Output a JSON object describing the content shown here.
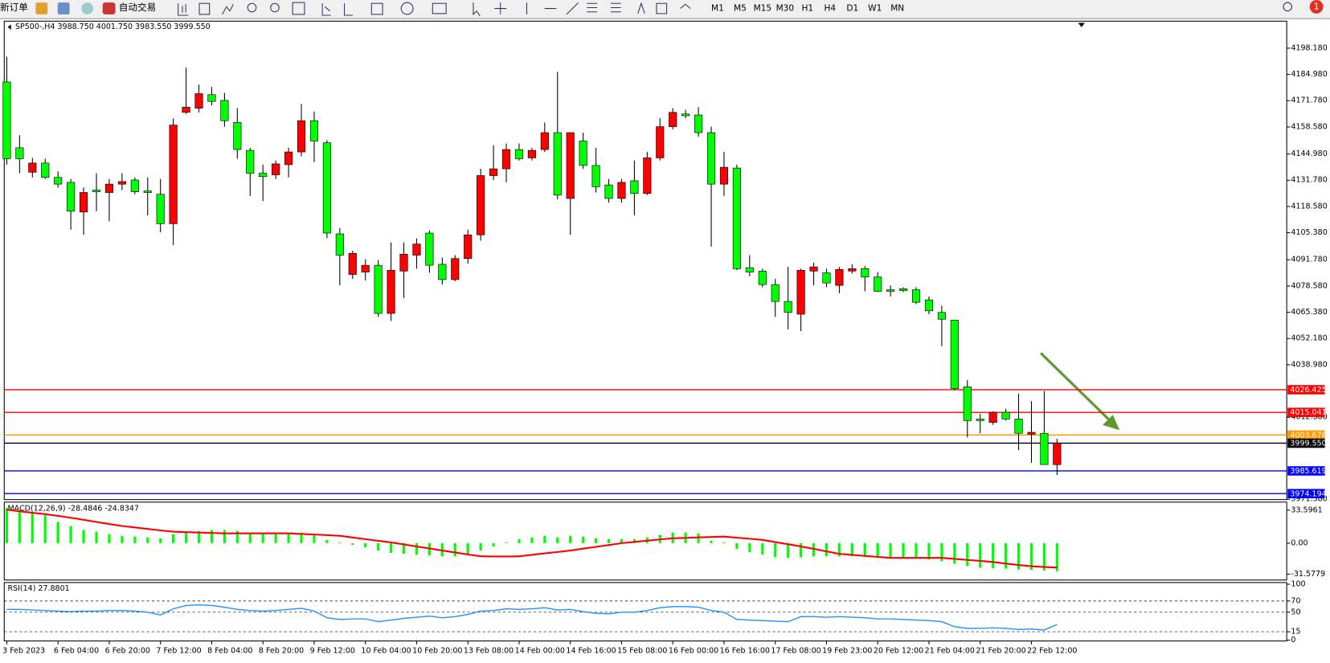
{
  "toolbar": {
    "new_order": "新订单",
    "auto_trading": "自动交易",
    "timeframes": [
      "M1",
      "M5",
      "M15",
      "M30",
      "H1",
      "H4",
      "D1",
      "W1",
      "MN"
    ],
    "notifications": "1"
  },
  "chart_data": [
    {
      "type": "candlestick",
      "title": "SP500-,H4 3988.750 4001.750 3983.550 3999.550",
      "categories": [
        "3 Feb 2023",
        null,
        null,
        null,
        "6 Feb 04:00",
        null,
        null,
        null,
        "6 Feb 20:00",
        null,
        null,
        null,
        "7 Feb 12:00",
        null,
        null,
        null,
        "8 Feb 04:00",
        null,
        null,
        null,
        "8 Feb 20:00",
        null,
        null,
        null,
        "9 Feb 12:00",
        null,
        null,
        null,
        "10 Feb 04:00",
        null,
        null,
        null,
        "10 Feb 20:00",
        null,
        null,
        null,
        "13 Feb 08:00",
        null,
        null,
        null,
        "14 Feb 00:00",
        null,
        null,
        null,
        "14 Feb 16:00",
        null,
        null,
        null,
        "15 Feb 08:00",
        null,
        null,
        null,
        "16 Feb 00:00",
        null,
        null,
        null,
        "16 Feb 16:00",
        null,
        null,
        null,
        "17 Feb 08:00",
        null,
        null,
        null,
        "19 Feb 23:00",
        null,
        null,
        null,
        "20 Feb 12:00",
        null,
        null,
        null,
        "21 Feb 04:00",
        null,
        null,
        null,
        "21 Feb 20:00",
        null,
        null,
        null,
        "22 Feb 12:00",
        null,
        null
      ],
      "open": [
        4181.2,
        4148.1,
        4135.8,
        4140.4,
        4133.2,
        4130.7,
        4115.8,
        4126.8,
        4125.6,
        4129.8,
        4131.9,
        4126.4,
        4124.7,
        4109.9,
        4165.9,
        4168.0,
        4174.8,
        4171.9,
        4160.8,
        4146.8,
        4135.3,
        4134.5,
        4139.6,
        4146.0,
        4161.7,
        4150.6,
        4104.8,
        4084.4,
        4085.6,
        4089.0,
        4064.8,
        4086.1,
        4094.1,
        4105.2,
        4089.5,
        4081.8,
        4092.4,
        4104.3,
        4134.1,
        4137.5,
        4147.2,
        4143.0,
        4147.2,
        4155.7,
        4122.6,
        4151.5,
        4139.2,
        4129.4,
        4122.6,
        4131.5,
        4125.1,
        4143.0,
        4158.7,
        4165.1,
        4164.6,
        4155.7,
        4129.8,
        4137.9,
        4087.8,
        4086.1,
        4079.3,
        4070.8,
        4064.4,
        4086.1,
        4085.2,
        4078.9,
        4086.1,
        4087.3,
        4083.1,
        4076.7,
        4077.2,
        4076.7,
        4071.6,
        4065.3,
        4061.4,
        4027.9,
        4011.7,
        4010.0,
        4015.1,
        4011.7,
        4004.1,
        4004.5,
        3988.75
      ],
      "high": [
        4193.9,
        4154.4,
        4143.0,
        4142.6,
        4136.2,
        4132.4,
        4128.1,
        4135.3,
        4132.4,
        4135.3,
        4133.2,
        4133.2,
        4132.4,
        4162.9,
        4188.4,
        4179.9,
        4178.7,
        4175.7,
        4168.0,
        4148.1,
        4139.6,
        4141.7,
        4148.1,
        4170.2,
        4166.3,
        4151.9,
        4107.7,
        4096.3,
        4092.0,
        4091.6,
        4100.5,
        4100.5,
        4102.6,
        4106.5,
        4092.9,
        4094.1,
        4106.9,
        4137.5,
        4149.4,
        4150.2,
        4150.2,
        4148.1,
        4160.8,
        4186.3,
        4155.7,
        4155.7,
        4148.1,
        4132.4,
        4132.4,
        4141.7,
        4146.0,
        4162.9,
        4168.0,
        4167.2,
        4168.5,
        4158.7,
        4146.0,
        4139.6,
        4094.1,
        4087.3,
        4082.2,
        4088.2,
        4087.3,
        4090.3,
        4087.3,
        4088.2,
        4089.5,
        4088.6,
        4085.6,
        4078.9,
        4078.0,
        4078.0,
        4073.3,
        4068.7,
        4061.4,
        4031.3,
        4014.3,
        4015.6,
        4016.8,
        4024.5,
        4020.7,
        4025.8,
        4001.75
      ],
      "low": [
        4139.6,
        4135.3,
        4133.2,
        4132.4,
        4128.1,
        4106.9,
        4104.3,
        4116.2,
        4111.1,
        4126.8,
        4124.7,
        4114.1,
        4105.6,
        4099.2,
        4165.1,
        4165.9,
        4169.3,
        4158.7,
        4142.6,
        4123.9,
        4121.3,
        4132.4,
        4133.2,
        4143.8,
        4140.9,
        4102.6,
        4078.9,
        4082.2,
        4081.4,
        4063.1,
        4061.0,
        4072.5,
        4087.3,
        4085.2,
        4079.3,
        4081.0,
        4089.9,
        4101.4,
        4131.9,
        4130.7,
        4141.7,
        4141.7,
        4146.0,
        4122.2,
        4104.3,
        4137.5,
        4125.6,
        4120.5,
        4120.5,
        4114.1,
        4124.3,
        4141.7,
        4157.4,
        4162.9,
        4153.6,
        4098.4,
        4123.9,
        4086.5,
        4083.5,
        4078.0,
        4063.1,
        4056.8,
        4055.9,
        4078.9,
        4078.0,
        4075.0,
        4084.8,
        4075.9,
        4075.5,
        4073.3,
        4075.5,
        4069.5,
        4064.4,
        4048.3,
        4026.2,
        4002.4,
        4004.5,
        4008.8,
        4010.9,
        3996.0,
        3989.7,
        3988.8,
        3983.55
      ],
      "close": [
        4142.6,
        4142.6,
        4140.4,
        4133.2,
        4129.8,
        4116.2,
        4125.6,
        4126.0,
        4129.8,
        4131.1,
        4126.0,
        4125.6,
        4109.9,
        4159.5,
        4168.5,
        4175.3,
        4171.4,
        4161.7,
        4147.2,
        4135.3,
        4133.6,
        4140.0,
        4146.0,
        4161.7,
        4151.5,
        4105.2,
        4094.1,
        4095.0,
        4089.0,
        4064.8,
        4086.5,
        4094.6,
        4099.7,
        4089.0,
        4081.8,
        4092.4,
        4104.3,
        4134.1,
        4137.5,
        4147.2,
        4142.6,
        4146.8,
        4155.7,
        4124.3,
        4155.7,
        4139.2,
        4128.5,
        4122.6,
        4130.7,
        4125.1,
        4143.0,
        4158.7,
        4165.9,
        4164.2,
        4155.7,
        4129.8,
        4138.3,
        4087.3,
        4085.6,
        4079.3,
        4070.8,
        4065.3,
        4086.5,
        4088.2,
        4080.1,
        4086.9,
        4087.3,
        4083.1,
        4075.9,
        4075.9,
        4076.3,
        4070.4,
        4066.1,
        4061.9,
        4027.0,
        4010.9,
        4010.9,
        4015.1,
        4011.7,
        4004.5,
        4005.0,
        3988.8,
        3999.55
      ],
      "up_color": "#ff0000",
      "down_color": "#00ff00",
      "ylim": [
        3971.2,
        4210.9
      ],
      "yticks": [
        {
          "value": 4198.18,
          "label": "4198.180"
        },
        {
          "value": 4184.98,
          "label": "4184.980"
        },
        {
          "value": 4171.78,
          "label": "4171.780"
        },
        {
          "value": 4158.58,
          "label": "4158.580"
        },
        {
          "value": 4144.98,
          "label": "4144.980"
        },
        {
          "value": 4131.78,
          "label": "4131.780"
        },
        {
          "value": 4118.58,
          "label": "4118.580"
        },
        {
          "value": 4105.38,
          "label": "4105.380"
        },
        {
          "value": 4091.78,
          "label": "4091.780"
        },
        {
          "value": 4078.58,
          "label": "4078.580"
        },
        {
          "value": 4065.38,
          "label": "4065.380"
        },
        {
          "value": 4052.18,
          "label": "4052.180"
        },
        {
          "value": 4038.98,
          "label": "4038.980"
        },
        {
          "value": 4012.58,
          "label": "4012.580"
        },
        {
          "value": 3971.38,
          "label": "3971.380"
        }
      ],
      "hlines": [
        {
          "value": 4026.425,
          "label": "4026.425",
          "color": "#ff0000"
        },
        {
          "value": 4015.041,
          "label": "4015.041",
          "color": "#ff0000"
        },
        {
          "value": 4003.678,
          "label": "4003.678",
          "color": "#ff9900"
        },
        {
          "value": 3999.55,
          "label": "3999.550",
          "color": "#000000"
        },
        {
          "value": 3985.619,
          "label": "3985.619",
          "color": "#0000ff"
        },
        {
          "value": 3974.194,
          "label": "3974.194",
          "color": "#0000ff"
        }
      ]
    },
    {
      "type": "macd",
      "title": "MACD(12,26,9) -28.4846 -24.8347",
      "histogram": {
        "color": "#00ff00",
        "values": [
          35.9,
          34.2,
          31.7,
          28.4,
          21.7,
          17.5,
          13.4,
          11.7,
          9.2,
          7.5,
          6.7,
          5.8,
          5.0,
          9.2,
          11.7,
          12.5,
          13.4,
          13.4,
          12.5,
          10.9,
          9.2,
          9.2,
          9.2,
          10.9,
          9.2,
          3.3,
          0.8,
          -1.7,
          -4.2,
          -7.5,
          -10.0,
          -10.9,
          -11.7,
          -12.5,
          -13.4,
          -13.4,
          -11.7,
          -7.5,
          -3.3,
          0.8,
          4.2,
          5.8,
          7.5,
          5.8,
          7.5,
          6.7,
          5.0,
          4.2,
          4.2,
          4.2,
          5.8,
          8.4,
          10.9,
          10.9,
          10.0,
          2.5,
          0.8,
          -5.8,
          -9.2,
          -11.7,
          -14.2,
          -15.0,
          -14.2,
          -13.4,
          -13.4,
          -13.4,
          -13.4,
          -14.2,
          -15.0,
          -15.0,
          -15.0,
          -15.9,
          -16.7,
          -18.4,
          -21.0,
          -23.5,
          -25.0,
          -25.5,
          -26.0,
          -26.8,
          -27.2,
          -27.8,
          -28.4846
        ]
      },
      "signal": {
        "color": "#ff0000",
        "values": [
          34.0,
          32.5,
          31.0,
          29.5,
          27.8,
          25.9,
          23.8,
          21.6,
          19.5,
          17.5,
          16.0,
          14.5,
          13.0,
          11.7,
          11.2,
          10.8,
          10.4,
          10.0,
          10.0,
          10.0,
          10.0,
          10.0,
          10.0,
          9.4,
          8.8,
          8.2,
          7.5,
          5.8,
          4.1,
          2.4,
          0.8,
          -1.3,
          -3.4,
          -5.4,
          -7.5,
          -9.5,
          -11.5,
          -13.4,
          -13.6,
          -13.6,
          -13.4,
          -11.9,
          -10.4,
          -9.0,
          -7.5,
          -5.6,
          -3.8,
          -1.9,
          0,
          1.3,
          2.5,
          3.8,
          5.0,
          5.4,
          5.9,
          6.3,
          6.7,
          5.6,
          4.5,
          3.3,
          1.1,
          -1.1,
          -3.3,
          -5.8,
          -8.4,
          -10.9,
          -11.9,
          -13.0,
          -14.0,
          -15.0,
          -15.0,
          -15.0,
          -15.0,
          -15.0,
          -16.0,
          -17.1,
          -18.1,
          -19.2,
          -20.8,
          -22.3,
          -23.5,
          -24.3,
          -24.8347
        ]
      },
      "ylim": [
        -36.7,
        40.1
      ],
      "yticks": [
        33.5961,
        {
          "value": 0,
          "label": "0.00"
        },
        -31.5779
      ]
    },
    {
      "type": "line",
      "title": "RSI(14) 27.8801",
      "color": "#1e90ff",
      "values": [
        55,
        55,
        54,
        53,
        52,
        51,
        52,
        52,
        53,
        53,
        52,
        50,
        45,
        56,
        62,
        63,
        62,
        59,
        55,
        53,
        52,
        53,
        55,
        57,
        52,
        40,
        37,
        38,
        38,
        33,
        36,
        39,
        41,
        43,
        40,
        42,
        46,
        52,
        53,
        56,
        55,
        56,
        58,
        54,
        55,
        51,
        48,
        47,
        50,
        50,
        53,
        58,
        60,
        60,
        59,
        53,
        50,
        37,
        36,
        35,
        34,
        33,
        42,
        42,
        41,
        42,
        41,
        40,
        38,
        38,
        37,
        36,
        35,
        33,
        24,
        21,
        21,
        22,
        21,
        19,
        20,
        18,
        27.8801
      ],
      "ylim": [
        0,
        100
      ],
      "yticks": [
        100,
        70,
        50,
        15,
        0
      ],
      "grid": true
    }
  ]
}
